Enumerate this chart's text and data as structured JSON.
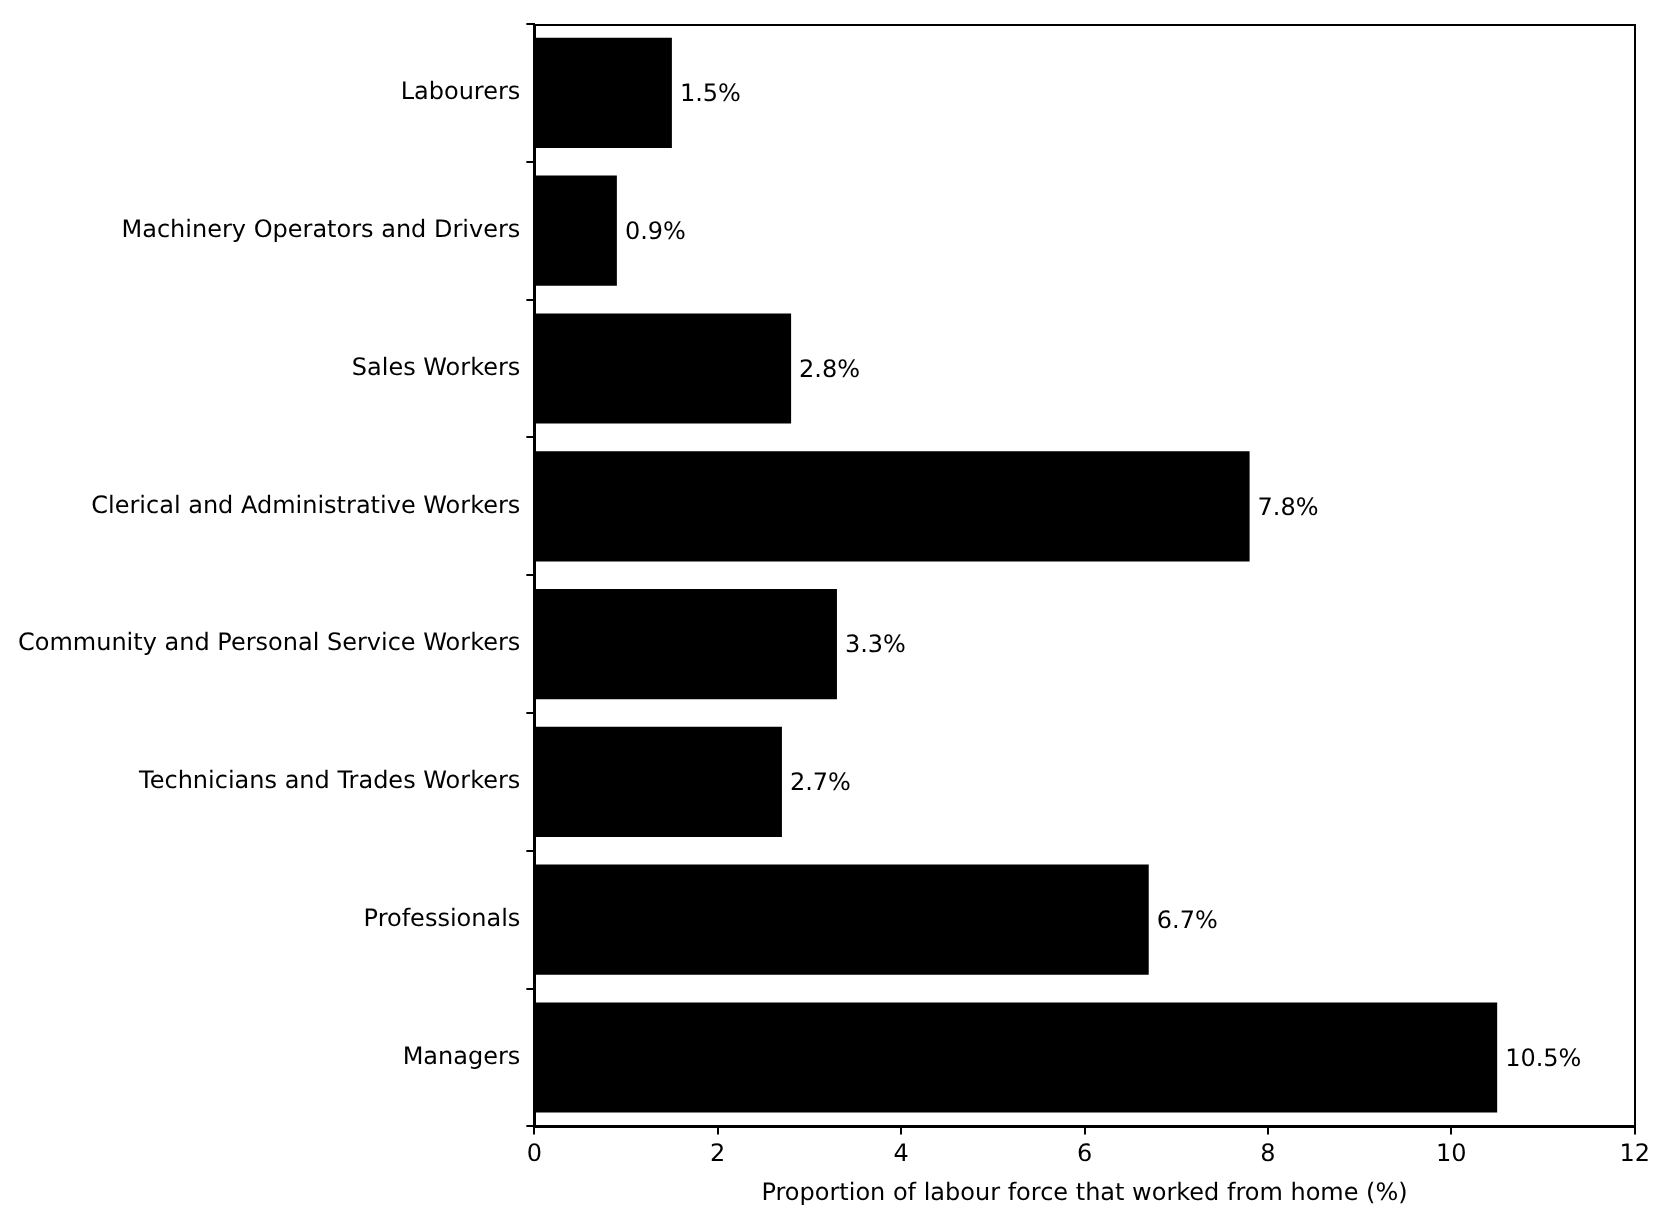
{
  "chart_data": {
    "type": "bar",
    "orientation": "horizontal",
    "xlabel": "Proportion of labour force that worked from home (%)",
    "categories": [
      "Labourers",
      "Machinery Operators and Drivers",
      "Sales Workers",
      "Clerical and Administrative Workers",
      "Community and Personal Service Workers",
      "Technicians and Trades Workers",
      "Professionals",
      "Managers"
    ],
    "values": [
      1.5,
      0.9,
      2.8,
      7.8,
      3.3,
      2.7,
      6.7,
      10.5
    ],
    "value_labels": [
      "1.5%",
      "0.9%",
      "2.8%",
      "7.8%",
      "3.3%",
      "2.7%",
      "6.7%",
      "10.5%"
    ],
    "color": "#000000",
    "xlim": [
      0,
      12
    ],
    "xticks": [
      0,
      2,
      4,
      6,
      8,
      10,
      12
    ],
    "grid": false,
    "legend": false
  }
}
